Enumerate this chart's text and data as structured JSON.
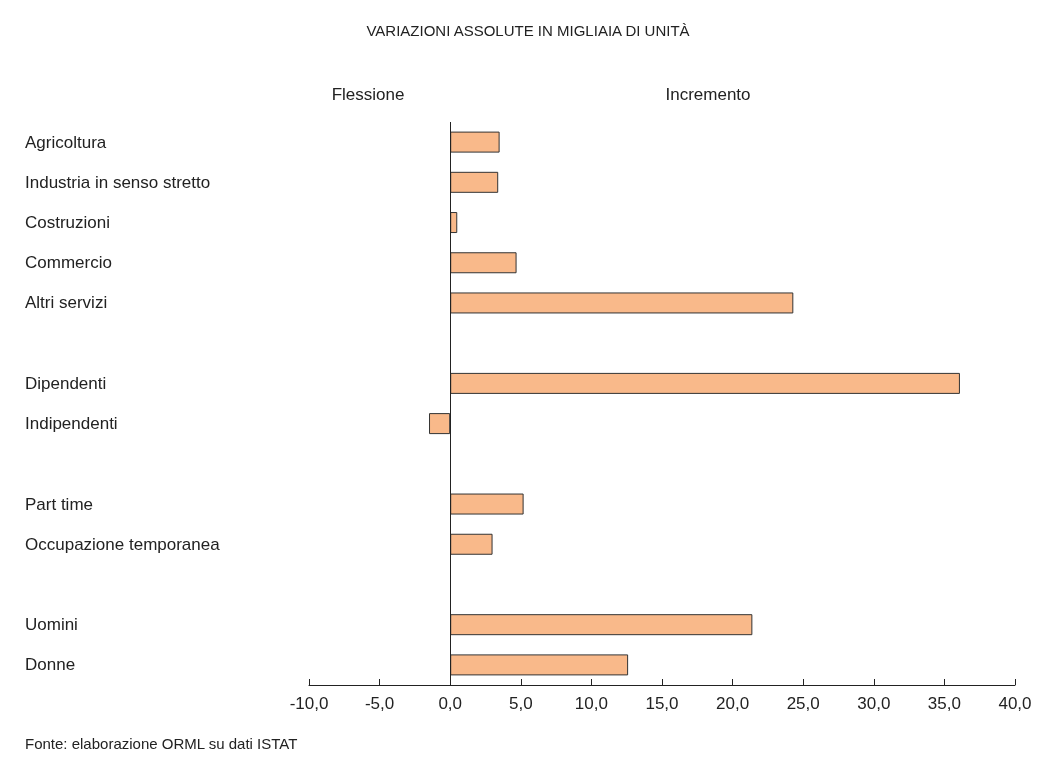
{
  "chart_data": {
    "type": "bar",
    "orientation": "horizontal",
    "subtitle": "VARIAZIONI ASSOLUTE IN MIGLIAIA DI UNITÀ",
    "categories": [
      "Agricoltura",
      "Industria in senso stretto",
      "Costruzioni",
      "Commercio",
      "Altri servizi",
      null,
      "Dipendenti",
      "Indipendenti",
      null,
      "Part time",
      "Occupazione temporanea",
      null,
      "Uomini",
      "Donne"
    ],
    "values": [
      3.5,
      3.4,
      0.5,
      4.7,
      24.3,
      null,
      36.1,
      -1.5,
      null,
      5.2,
      3.0,
      null,
      21.4,
      12.6
    ],
    "color": "#f9b98a",
    "xlim": [
      -10,
      40
    ],
    "xticks": [
      {
        "value": -10,
        "label": "-10,0"
      },
      {
        "value": -5,
        "label": "-5,0"
      },
      {
        "value": 0,
        "label": "0,0"
      },
      {
        "value": 5,
        "label": "5,0"
      },
      {
        "value": 10,
        "label": "10,0"
      },
      {
        "value": 15,
        "label": "15,0"
      },
      {
        "value": 20,
        "label": "20,0"
      },
      {
        "value": 25,
        "label": "25,0"
      },
      {
        "value": 30,
        "label": "30,0"
      },
      {
        "value": 35,
        "label": "35,0"
      },
      {
        "value": 40,
        "label": "40,0"
      }
    ],
    "annotations": [
      "Flessione",
      "Incremento",
      "Fonte: elaborazione ORML su dati ISTAT"
    ],
    "ref_lines": [
      {
        "axis": "x",
        "value": 0
      }
    ],
    "grid": false
  }
}
